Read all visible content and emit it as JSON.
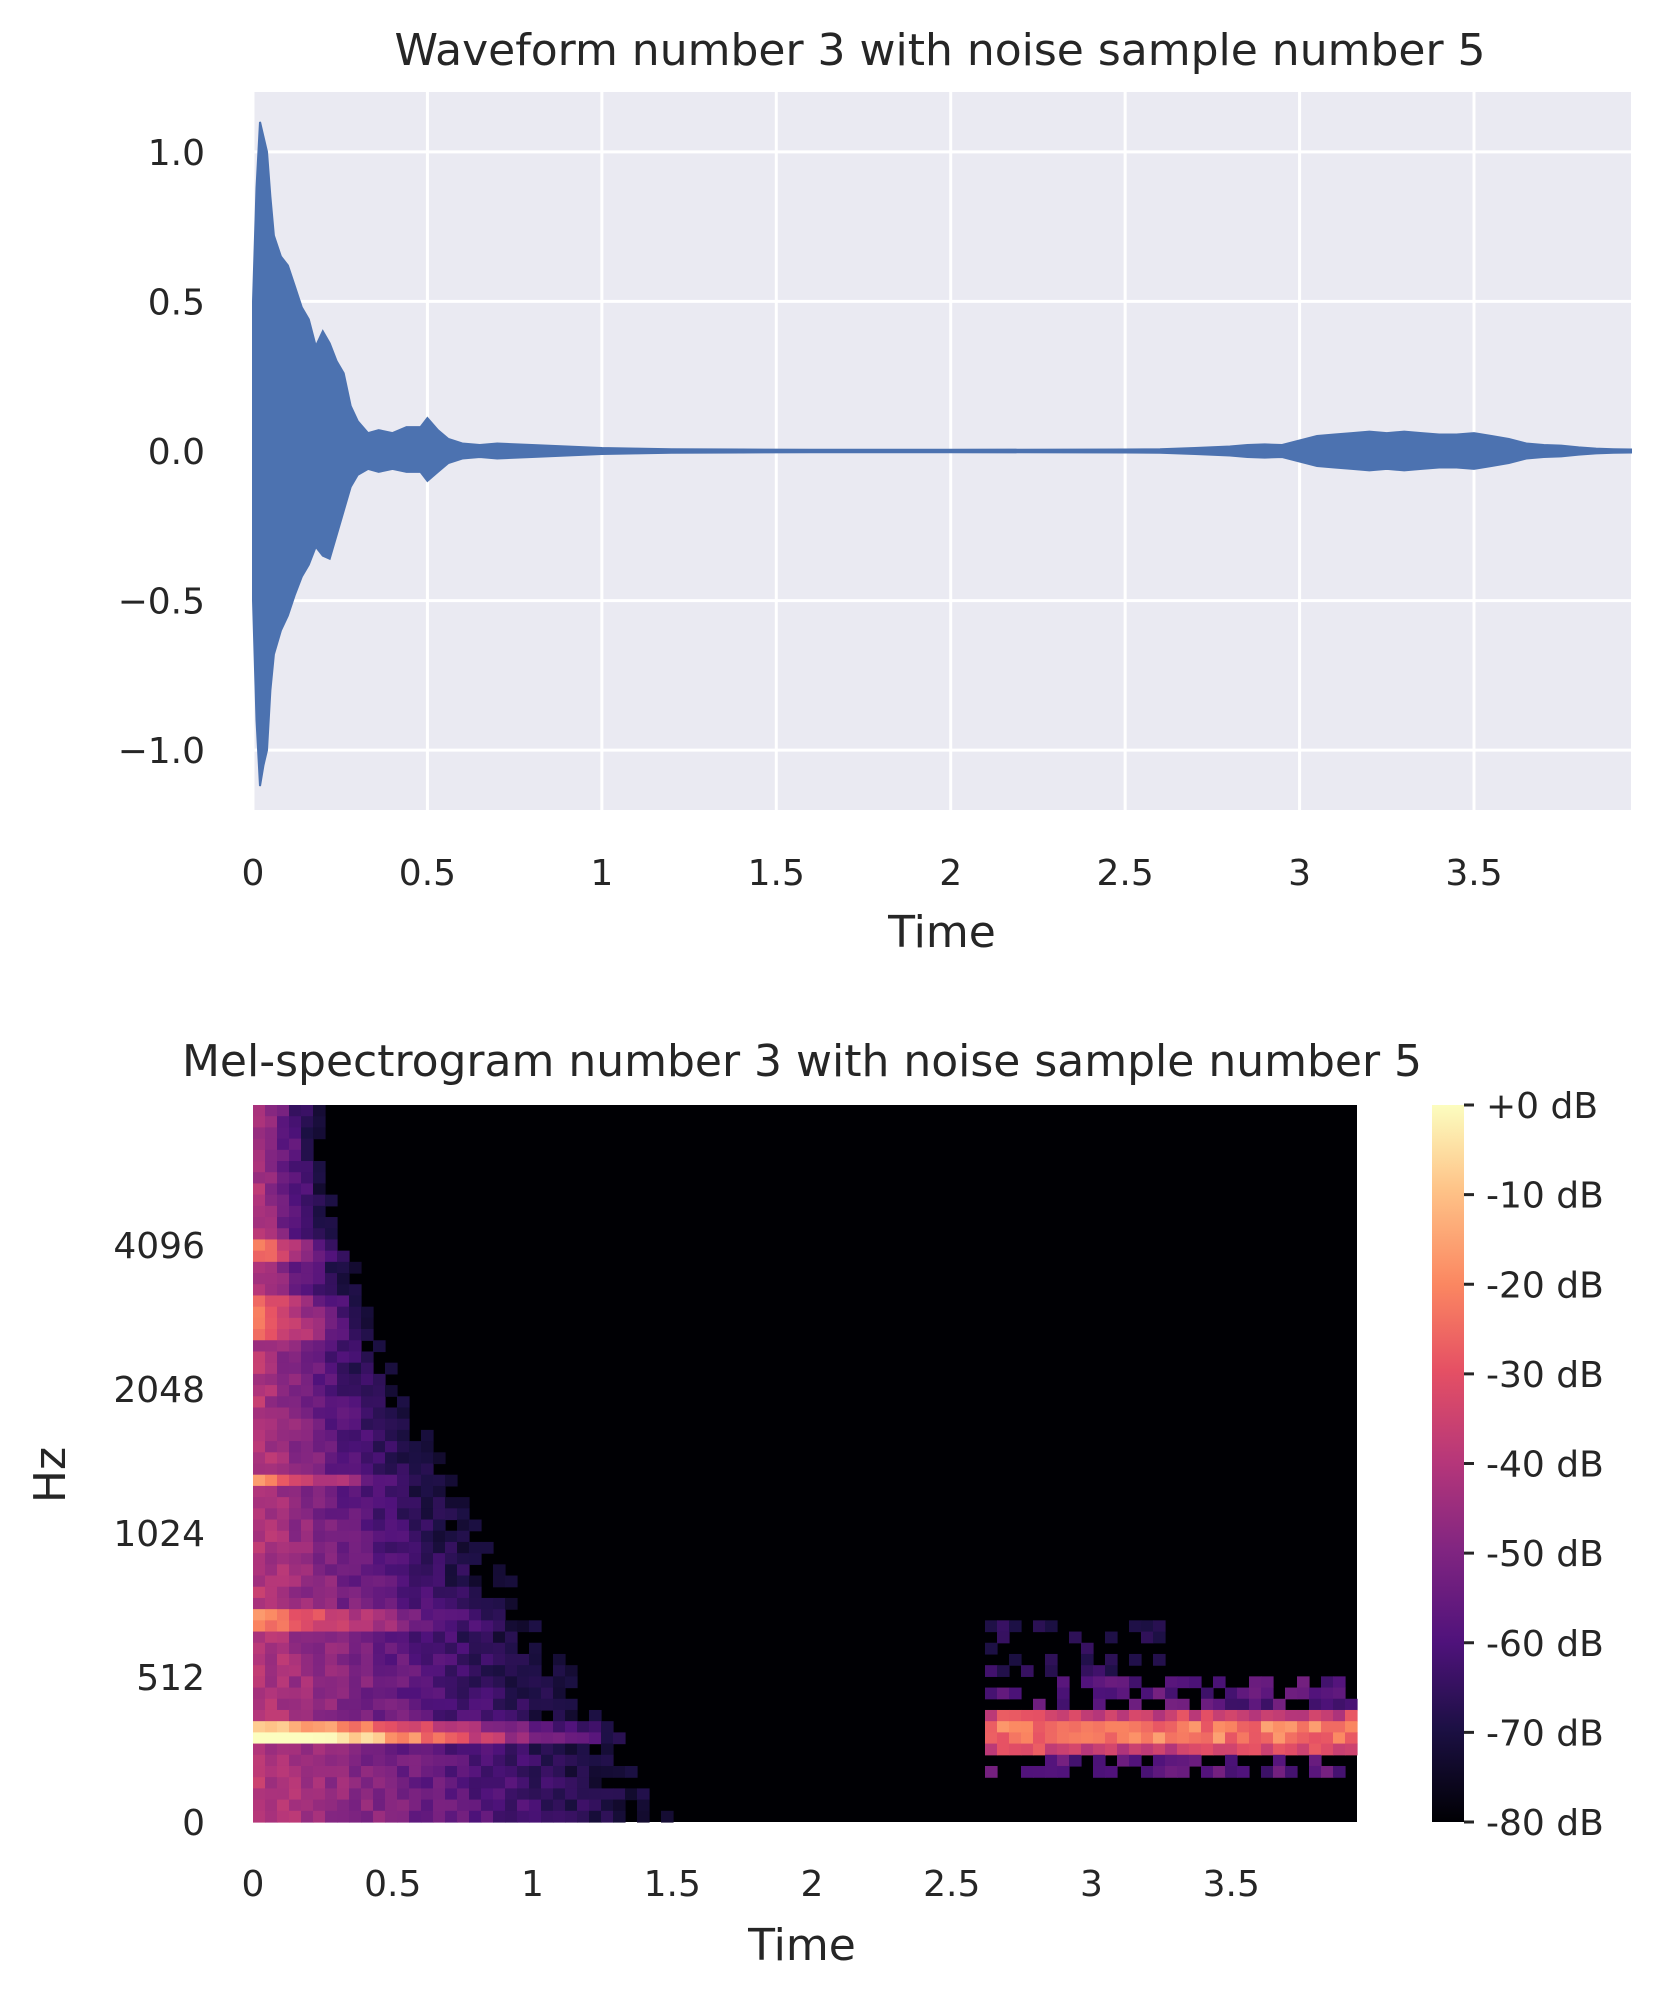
{
  "chart_data": [
    {
      "type": "area",
      "title": "Waveform number 3 with noise sample number 5",
      "xlabel": "Time",
      "ylabel": "",
      "xlim": [
        0,
        3.95
      ],
      "ylim": [
        -1.2,
        1.2
      ],
      "grid": true,
      "x_ticks": [
        0,
        0.5,
        1,
        1.5,
        2,
        2.5,
        3,
        3.5
      ],
      "x_tick_labels": [
        "0",
        "0.5",
        "1",
        "1.5",
        "2",
        "2.5",
        "3",
        "3.5"
      ],
      "y_ticks": [
        1.0,
        0.5,
        0.0,
        -0.5,
        -1.0
      ],
      "y_tick_labels": [
        "1.0",
        "0.5",
        "0.0",
        "−0.5",
        "−1.0"
      ],
      "series": [
        {
          "color": "#4c72b0",
          "x": [
            0,
            0.01,
            0.02,
            0.03,
            0.04,
            0.05,
            0.06,
            0.08,
            0.1,
            0.12,
            0.14,
            0.16,
            0.18,
            0.2,
            0.22,
            0.24,
            0.26,
            0.28,
            0.3,
            0.33,
            0.36,
            0.4,
            0.44,
            0.48,
            0.5,
            0.53,
            0.56,
            0.6,
            0.65,
            0.7,
            0.8,
            0.9,
            1.0,
            1.1,
            1.2,
            1.4,
            1.6,
            2.0,
            2.5,
            2.6,
            2.7,
            2.8,
            2.85,
            2.9,
            2.95,
            3.0,
            3.05,
            3.1,
            3.15,
            3.2,
            3.25,
            3.3,
            3.35,
            3.4,
            3.45,
            3.5,
            3.55,
            3.6,
            3.65,
            3.7,
            3.75,
            3.8,
            3.85,
            3.9,
            3.95
          ],
          "upper": [
            0.5,
            0.88,
            1.1,
            1.05,
            1.0,
            0.85,
            0.72,
            0.65,
            0.62,
            0.55,
            0.48,
            0.44,
            0.35,
            0.4,
            0.36,
            0.3,
            0.26,
            0.15,
            0.1,
            0.06,
            0.07,
            0.06,
            0.08,
            0.08,
            0.11,
            0.07,
            0.04,
            0.025,
            0.02,
            0.025,
            0.02,
            0.015,
            0.01,
            0.008,
            0.006,
            0.005,
            0.004,
            0.004,
            0.005,
            0.006,
            0.01,
            0.015,
            0.02,
            0.022,
            0.02,
            0.035,
            0.05,
            0.055,
            0.06,
            0.065,
            0.06,
            0.065,
            0.06,
            0.055,
            0.055,
            0.06,
            0.05,
            0.04,
            0.025,
            0.02,
            0.018,
            0.012,
            0.008,
            0.006,
            0.005
          ],
          "lower": [
            -0.5,
            -0.9,
            -1.12,
            -1.05,
            -1.0,
            -0.8,
            -0.68,
            -0.6,
            -0.55,
            -0.48,
            -0.42,
            -0.38,
            -0.32,
            -0.35,
            -0.36,
            -0.28,
            -0.2,
            -0.12,
            -0.08,
            -0.06,
            -0.07,
            -0.06,
            -0.07,
            -0.07,
            -0.1,
            -0.07,
            -0.04,
            -0.025,
            -0.02,
            -0.025,
            -0.02,
            -0.015,
            -0.01,
            -0.008,
            -0.006,
            -0.005,
            -0.004,
            -0.004,
            -0.005,
            -0.006,
            -0.01,
            -0.015,
            -0.02,
            -0.022,
            -0.02,
            -0.035,
            -0.05,
            -0.055,
            -0.06,
            -0.065,
            -0.06,
            -0.065,
            -0.06,
            -0.055,
            -0.055,
            -0.06,
            -0.05,
            -0.04,
            -0.025,
            -0.02,
            -0.018,
            -0.012,
            -0.008,
            -0.006,
            -0.005
          ]
        }
      ]
    },
    {
      "type": "heatmap",
      "title": "Mel-spectrogram number 3 with noise sample number 5",
      "xlabel": "Time",
      "ylabel": "Hz",
      "xlim": [
        0,
        3.95
      ],
      "x_ticks": [
        0,
        0.5,
        1,
        1.5,
        2,
        2.5,
        3,
        3.5
      ],
      "x_tick_labels": [
        "0",
        "0.5",
        "1",
        "1.5",
        "2",
        "2.5",
        "3",
        "3.5"
      ],
      "y_scale": "mel",
      "y_tick_labels": [
        "4096",
        "2048",
        "1024",
        "512",
        "0"
      ],
      "colormap": "magma",
      "colorbar_tick_labels": [
        "+0 dB",
        "-10 dB",
        "-20 dB",
        "-30 dB",
        "-40 dB",
        "-50 dB",
        "-60 dB",
        "-70 dB",
        "-80 dB"
      ],
      "value_range_db": [
        -80,
        0
      ],
      "grid": false
    }
  ]
}
